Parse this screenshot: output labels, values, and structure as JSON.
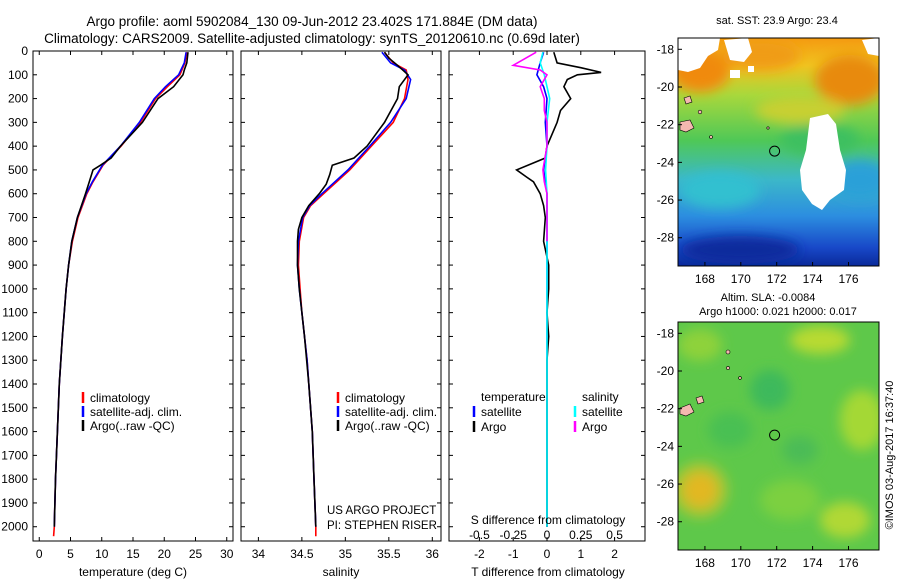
{
  "title": {
    "line1": "Argo profile: aoml 5902084_130 09-Jun-2012 23.402S 171.884E (DM data)",
    "line2": "Climatology: CARS2009. Satellite-adjusted climatology: synTS_20120610.nc (0.69d later)"
  },
  "colors": {
    "climatology": "#ff0000",
    "satellite": "#0000ff",
    "argo": "#000000",
    "argo_salinity": "#ff00ff",
    "satellite_salinity": "#00ffff"
  },
  "credit": "©IMOS 03-Aug-2017 16:37:40",
  "project_note": {
    "line1": "US ARGO PROJECT",
    "line2": "PI: STEPHEN RISER"
  },
  "chart_data": [
    {
      "id": "temperature",
      "type": "line",
      "xlabel": "temperature (deg C)",
      "xlim": [
        -1,
        31
      ],
      "xticks": [
        "0",
        "5",
        "10",
        "15",
        "20",
        "25",
        "30"
      ],
      "xtick_values": [
        0,
        5,
        10,
        15,
        20,
        25,
        30
      ],
      "ylim": [
        0,
        2060
      ],
      "yticks": [
        "0",
        "100",
        "200",
        "300",
        "400",
        "500",
        "600",
        "700",
        "800",
        "900",
        "1000",
        "1100",
        "1200",
        "1300",
        "1400",
        "1500",
        "1600",
        "1700",
        "1800",
        "1900",
        "2000"
      ],
      "ytick_values": [
        0,
        100,
        200,
        300,
        400,
        500,
        600,
        700,
        800,
        900,
        1000,
        1100,
        1200,
        1300,
        1400,
        1500,
        1600,
        1700,
        1800,
        1900,
        2000
      ],
      "legend": [
        "climatology",
        "satellite-adj. clim.",
        "Argo(..raw -QC)"
      ],
      "series": [
        {
          "name": "climatology",
          "color": "#ff0000",
          "depth": [
            5,
            50,
            100,
            150,
            200,
            300,
            400,
            480,
            550,
            600,
            700,
            800,
            900,
            1000,
            1200,
            1400,
            1600,
            1800,
            2000,
            2040
          ],
          "values": [
            23.6,
            23.3,
            22.5,
            20.5,
            18.6,
            16.2,
            13.1,
            10.2,
            8.6,
            7.6,
            6.2,
            5.3,
            4.7,
            4.3,
            3.7,
            3.2,
            2.9,
            2.6,
            2.4,
            2.3
          ]
        },
        {
          "name": "satellite-adj. clim.",
          "color": "#0000ff",
          "depth": [
            5,
            50,
            100,
            150,
            200,
            300,
            400,
            480,
            550,
            600,
            700,
            800,
            900,
            1000,
            1200,
            1400,
            1600,
            1800,
            2000
          ],
          "values": [
            23.5,
            23.2,
            22.3,
            20.2,
            18.4,
            16.0,
            13.0,
            10.1,
            8.5,
            7.5,
            6.1,
            5.2,
            4.7,
            4.3,
            3.7,
            3.2,
            2.9,
            2.6,
            2.4
          ]
        },
        {
          "name": "Argo(..raw -QC)",
          "color": "#000000",
          "depth": [
            5,
            50,
            80,
            100,
            150,
            200,
            300,
            400,
            450,
            480,
            500,
            550,
            600,
            700,
            800,
            900,
            1000,
            1200,
            1400,
            1600,
            1800,
            2000
          ],
          "values": [
            23.8,
            23.6,
            23.2,
            23.0,
            21.5,
            19.0,
            16.5,
            13.0,
            11.5,
            9.8,
            8.6,
            8.0,
            7.4,
            6.1,
            5.2,
            4.7,
            4.3,
            3.7,
            3.2,
            2.9,
            2.6,
            2.4
          ]
        }
      ]
    },
    {
      "id": "salinity",
      "type": "line",
      "xlabel": "salinity",
      "xlim": [
        33.8,
        36.1
      ],
      "xticks": [
        "34",
        "34.5",
        "35",
        "35.5",
        "36"
      ],
      "xtick_values": [
        34,
        34.5,
        35,
        35.5,
        36
      ],
      "ylim": [
        0,
        2060
      ],
      "legend": [
        "climatology",
        "satellite-adj. clim.",
        "Argo(..raw -QC)"
      ],
      "series": [
        {
          "name": "climatology",
          "color": "#ff0000",
          "depth": [
            5,
            50,
            80,
            120,
            200,
            300,
            400,
            500,
            550,
            600,
            650,
            700,
            800,
            900,
            1000,
            1100,
            1200,
            1300,
            1400,
            1600,
            1800,
            2000,
            2040
          ],
          "values": [
            35.45,
            35.55,
            35.7,
            35.72,
            35.68,
            35.55,
            35.3,
            35.05,
            34.9,
            34.75,
            34.6,
            34.52,
            34.47,
            34.46,
            34.48,
            34.5,
            34.53,
            34.56,
            34.58,
            34.62,
            34.64,
            34.66,
            34.66
          ]
        },
        {
          "name": "satellite-adj. clim.",
          "color": "#0000ff",
          "depth": [
            5,
            50,
            80,
            120,
            200,
            300,
            400,
            500,
            550,
            600,
            650,
            700,
            800,
            900,
            1000,
            1100,
            1200,
            1300,
            1400,
            1600,
            1800,
            2000
          ],
          "values": [
            35.42,
            35.52,
            35.68,
            35.75,
            35.7,
            35.52,
            35.28,
            35.03,
            34.88,
            34.73,
            34.59,
            34.51,
            34.46,
            34.45,
            34.47,
            34.5,
            34.53,
            34.56,
            34.58,
            34.62,
            34.64,
            34.66
          ]
        },
        {
          "name": "Argo(..raw -QC)",
          "color": "#000000",
          "depth": [
            5,
            30,
            60,
            100,
            150,
            200,
            300,
            400,
            450,
            480,
            520,
            560,
            600,
            650,
            700,
            750,
            800,
            900,
            1000,
            1100,
            1200,
            1400,
            1600,
            1800,
            2000
          ],
          "values": [
            35.45,
            35.5,
            35.6,
            35.72,
            35.62,
            35.6,
            35.45,
            35.25,
            35.1,
            34.85,
            34.82,
            34.78,
            34.7,
            34.58,
            34.5,
            34.46,
            34.45,
            34.45,
            34.47,
            34.5,
            34.53,
            34.58,
            34.62,
            34.64,
            34.66
          ]
        }
      ]
    },
    {
      "id": "difference",
      "type": "line",
      "xlabel": "T difference from climatology",
      "xlabel_top": "S difference from climatology",
      "xlim": [
        -2.9,
        2.9
      ],
      "xticks": [
        "-2",
        "-1",
        "0",
        "1",
        "2"
      ],
      "xtick_values": [
        -2,
        -1,
        0,
        1,
        2
      ],
      "s_ticks": [
        "-0.5",
        "-0.25",
        "0",
        "0.25",
        "0.5"
      ],
      "s_tick_values": [
        -0.5,
        -0.25,
        0,
        0.25,
        0.5
      ],
      "ylim": [
        0,
        2060
      ],
      "legend_headers": [
        "temperature",
        "salinity"
      ],
      "legend": [
        "satellite",
        "Argo",
        "satellite",
        "Argo"
      ],
      "series": [
        {
          "name": "temperature satellite",
          "color": "#0000ff",
          "depth": [
            5,
            50,
            100,
            150,
            200,
            300,
            400,
            500,
            600,
            700,
            800,
            1000,
            1500,
            2000
          ],
          "values": [
            -0.1,
            -0.2,
            -0.3,
            -0.1,
            0.0,
            -0.05,
            0.0,
            -0.1,
            0.0,
            0.0,
            0.0,
            0.0,
            0.0,
            0.0
          ]
        },
        {
          "name": "temperature Argo",
          "color": "#000000",
          "depth": [
            5,
            50,
            70,
            90,
            100,
            120,
            150,
            200,
            250,
            300,
            400,
            450,
            500,
            530,
            550,
            600,
            650,
            700,
            800,
            900,
            1000,
            1100,
            1200,
            1300,
            1400,
            1500,
            1600,
            2000
          ],
          "values": [
            0.2,
            0.3,
            1.0,
            1.6,
            0.9,
            0.6,
            0.5,
            0.7,
            0.4,
            0.3,
            0.0,
            -0.05,
            -0.9,
            -0.6,
            -0.4,
            -0.2,
            -0.1,
            -0.05,
            -0.1,
            0.05,
            0.05,
            0.0,
            0.05,
            0.0,
            0.0,
            0.0,
            0.0,
            0.0
          ]
        },
        {
          "name": "salinity satellite",
          "color": "#00ffff",
          "depth": [
            5,
            50,
            100,
            150,
            200,
            300,
            400,
            500,
            600,
            700,
            800,
            1000,
            1500,
            2000
          ],
          "values": [
            -0.03,
            -0.05,
            -0.02,
            0.0,
            0.02,
            0.0,
            0.0,
            -0.01,
            0.0,
            0.0,
            0.0,
            0.0,
            0.0,
            0.0
          ]
        },
        {
          "name": "salinity Argo",
          "color": "#ff00ff",
          "depth": [
            5,
            60,
            80,
            100,
            150,
            200,
            250,
            300,
            350,
            400,
            500,
            550,
            600,
            650,
            700,
            800
          ],
          "values": [
            -0.08,
            -0.25,
            -0.05,
            0.0,
            -0.05,
            -0.02,
            -0.02,
            0.0,
            0.0,
            0.0,
            -0.03,
            -0.02,
            0.0,
            0.0,
            0.0,
            0.0
          ]
        }
      ]
    },
    {
      "id": "sst-map",
      "type": "heatmap",
      "title": "sat. SST: 23.9 Argo: 23.4",
      "xticks": [
        "168",
        "170",
        "172",
        "174",
        "176"
      ],
      "xtick_values": [
        168,
        170,
        172,
        174,
        176
      ],
      "yticks": [
        "-18",
        "-20",
        "-22",
        "-24",
        "-26",
        "-28"
      ],
      "ytick_values": [
        -18,
        -20,
        -22,
        -24,
        -26,
        -28
      ],
      "lon_range": [
        166.5,
        177.7
      ],
      "lat_range": [
        -29.5,
        -17.4
      ],
      "argo_position": [
        171.884,
        -23.402
      ]
    },
    {
      "id": "sla-map",
      "type": "heatmap",
      "title_line1": "Altim. SLA: -0.0084",
      "title_line2": "Argo h1000: 0.021 h2000: 0.017",
      "xticks": [
        "168",
        "170",
        "172",
        "174",
        "176"
      ],
      "xtick_values": [
        168,
        170,
        172,
        174,
        176
      ],
      "yticks": [
        "-18",
        "-20",
        "-22",
        "-24",
        "-26",
        "-28"
      ],
      "ytick_values": [
        -18,
        -20,
        -22,
        -24,
        -26,
        -28
      ],
      "lon_range": [
        166.5,
        177.7
      ],
      "lat_range": [
        -29.5,
        -17.4
      ],
      "argo_position": [
        171.884,
        -23.402
      ]
    }
  ]
}
